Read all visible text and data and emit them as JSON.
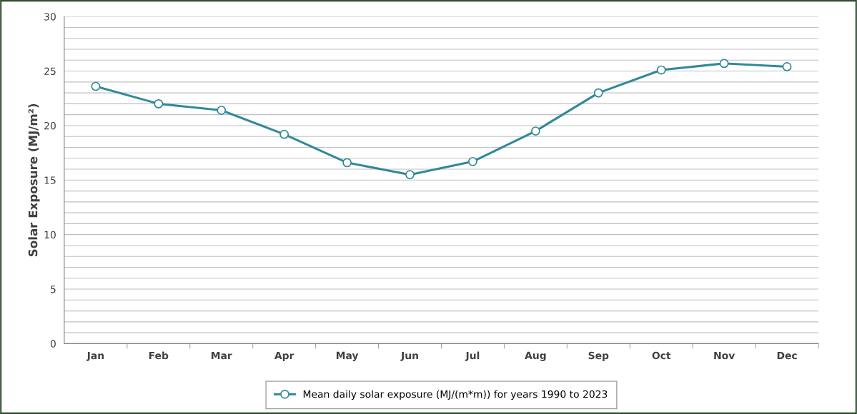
{
  "chart_data": {
    "type": "line",
    "ylabel": "Solar Exposure (MJ/m²)",
    "categories": [
      "Jan",
      "Feb",
      "Mar",
      "Apr",
      "May",
      "Jun",
      "Jul",
      "Aug",
      "Sep",
      "Oct",
      "Nov",
      "Dec"
    ],
    "series": [
      {
        "name": "Mean daily solar exposure (MJ/(m*m)) for years 1990 to 2023",
        "color": "#31899a",
        "values": [
          23.6,
          22.0,
          21.4,
          19.2,
          16.6,
          15.5,
          16.7,
          19.5,
          23.0,
          25.1,
          25.7,
          25.4
        ]
      }
    ],
    "ylim": [
      0,
      30
    ],
    "yticks": [
      0,
      {
        "value": 1,
        "label": null
      },
      {
        "value": 2,
        "label": null
      },
      {
        "value": 3,
        "label": null
      },
      {
        "value": 4,
        "label": null
      },
      5,
      {
        "value": 6,
        "label": null
      },
      {
        "value": 7,
        "label": null
      },
      {
        "value": 8,
        "label": null
      },
      {
        "value": 9,
        "label": null
      },
      10,
      {
        "value": 11,
        "label": null
      },
      {
        "value": 12,
        "label": null
      },
      {
        "value": 13,
        "label": null
      },
      {
        "value": 14,
        "label": null
      },
      15,
      {
        "value": 16,
        "label": null
      },
      {
        "value": 17,
        "label": null
      },
      {
        "value": 18,
        "label": null
      },
      {
        "value": 19,
        "label": null
      },
      20,
      {
        "value": 21,
        "label": null
      },
      {
        "value": 22,
        "label": null
      },
      {
        "value": 23,
        "label": null
      },
      {
        "value": 24,
        "label": null
      },
      25,
      {
        "value": 26,
        "label": null
      },
      {
        "value": 27,
        "label": null
      },
      {
        "value": 28,
        "label": null
      },
      {
        "value": 29,
        "label": null
      },
      30
    ],
    "grid": "y",
    "legend": "bottom",
    "marker": "circle",
    "line_style": "solid"
  }
}
